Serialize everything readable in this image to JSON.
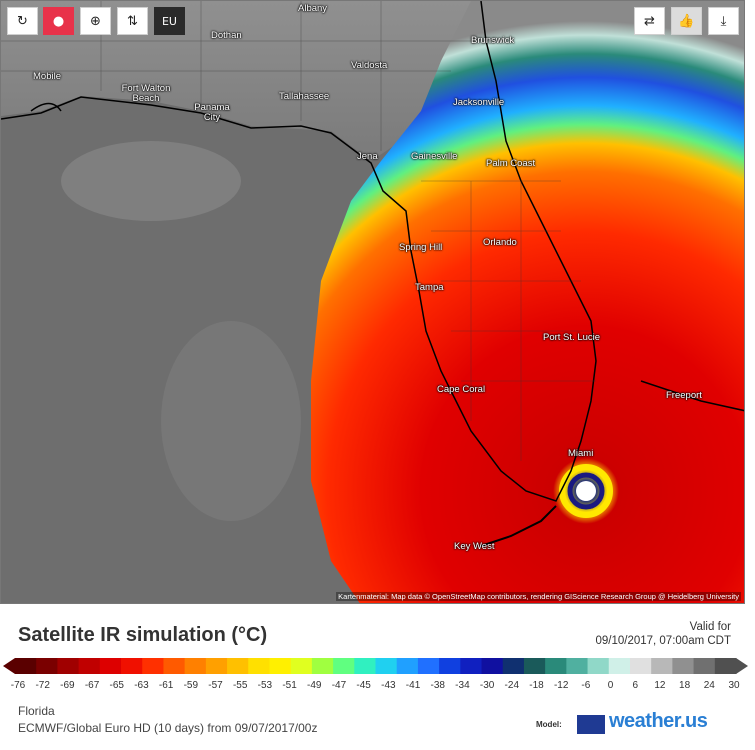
{
  "toolbar": {
    "eu_label": "EU"
  },
  "map": {
    "attribution": "Kartenmaterial: Map data © OpenStreetMap contributors, rendering GIScience Research Group @ Heidelberg University",
    "cities": [
      {
        "name": "Albany"
      },
      {
        "name": "Dothan"
      },
      {
        "name": "Valdosta"
      },
      {
        "name": "Brunswick"
      },
      {
        "name": "Mobile"
      },
      {
        "name": "Fort Walton Beach"
      },
      {
        "name": "Panama City"
      },
      {
        "name": "Tallahassee"
      },
      {
        "name": "Jacksonville"
      },
      {
        "name": "Jena"
      },
      {
        "name": "Gainesville"
      },
      {
        "name": "Palm Coast"
      },
      {
        "name": "Spring Hill"
      },
      {
        "name": "Orlando"
      },
      {
        "name": "Tampa"
      },
      {
        "name": "Port St. Lucie"
      },
      {
        "name": "Cape Coral"
      },
      {
        "name": "Freeport"
      },
      {
        "name": "Miami"
      },
      {
        "name": "Key West"
      }
    ]
  },
  "footer": {
    "title": "Satellite IR simulation (°C)",
    "valid_label": "Valid for",
    "valid_time": "09/10/2017, 07:00am CDT",
    "region": "Florida",
    "model": "ECMWF/Global Euro HD (10 days) from 09/07/2017/00z",
    "model_label": "Model:",
    "brand": "weather.us"
  },
  "legend": {
    "ticks": [
      "-76",
      "-72",
      "-69",
      "-67",
      "-65",
      "-63",
      "-61",
      "-59",
      "-57",
      "-55",
      "-53",
      "-51",
      "-49",
      "-47",
      "-45",
      "-43",
      "-41",
      "-38",
      "-34",
      "-30",
      "-24",
      "-18",
      "-12",
      "-6",
      "0",
      "6",
      "12",
      "18",
      "24",
      "30"
    ],
    "colors": [
      "#5a0000",
      "#7a0000",
      "#a00000",
      "#c00000",
      "#dd0000",
      "#f01000",
      "#ff3000",
      "#ff5a00",
      "#ff8000",
      "#ffa000",
      "#ffc000",
      "#ffe000",
      "#fff000",
      "#e0ff20",
      "#a0ff40",
      "#60ff80",
      "#30f0c0",
      "#20d0f0",
      "#20a0ff",
      "#2070ff",
      "#1040e0",
      "#1020c0",
      "#1010a0",
      "#103070",
      "#1a5a5a",
      "#2a8a7a",
      "#50b0a0",
      "#90d8c8",
      "#d0f0e8",
      "#e0e0e0",
      "#b8b8b8",
      "#909090",
      "#707070",
      "#505050"
    ]
  }
}
